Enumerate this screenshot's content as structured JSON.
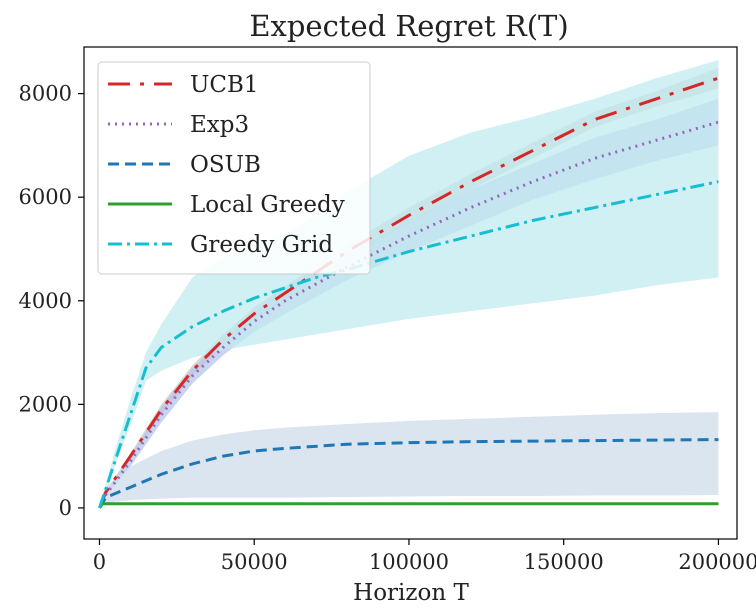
{
  "chart_data": {
    "type": "line",
    "title": "Expected Regret R(T)",
    "xlabel": "Horizon T",
    "ylabel": "",
    "xlim": [
      -5000,
      206000
    ],
    "ylim": [
      -600,
      8900
    ],
    "xticks": [
      0,
      50000,
      100000,
      150000,
      200000
    ],
    "yticks": [
      0,
      2000,
      4000,
      6000,
      8000
    ],
    "grid": false,
    "legend_position": "top-left",
    "series": [
      {
        "name": "UCB1",
        "color": "#d62728",
        "dash": "22 10 4 10",
        "x": [
          0,
          2000,
          10000,
          20000,
          30000,
          40000,
          50000,
          60000,
          80000,
          100000,
          120000,
          140000,
          160000,
          180000,
          200000
        ],
        "y": [
          0,
          300,
          1000,
          1900,
          2650,
          3250,
          3750,
          4150,
          4950,
          5650,
          6300,
          6900,
          7500,
          7900,
          8300
        ],
        "band": {
          "color": "#c9c9c9",
          "lower": [
            0,
            280,
            950,
            1800,
            2550,
            3150,
            3620,
            4020,
            4820,
            5500,
            6150,
            6750,
            7350,
            7750,
            8100
          ],
          "upper": [
            0,
            320,
            1050,
            2000,
            2750,
            3350,
            3880,
            4280,
            5080,
            5800,
            6450,
            7050,
            7650,
            8050,
            8500
          ]
        }
      },
      {
        "name": "Exp3",
        "color": "#9467bd",
        "dash": "2 5",
        "x": [
          0,
          2000,
          10000,
          20000,
          30000,
          40000,
          50000,
          60000,
          80000,
          100000,
          120000,
          140000,
          160000,
          180000,
          200000
        ],
        "y": [
          0,
          250,
          900,
          1800,
          2550,
          3100,
          3600,
          4000,
          4650,
          5250,
          5800,
          6300,
          6750,
          7100,
          7450
        ],
        "band": {
          "color": "#b7c5e8",
          "lower": [
            0,
            220,
            800,
            1650,
            2400,
            2950,
            3400,
            3750,
            4400,
            4950,
            5450,
            5950,
            6350,
            6700,
            7000
          ],
          "upper": [
            0,
            280,
            1000,
            1950,
            2700,
            3250,
            3800,
            4250,
            4900,
            5550,
            6150,
            6650,
            7150,
            7500,
            7900
          ]
        }
      },
      {
        "name": "OSUB",
        "color": "#1f77b4",
        "dash": "11 6",
        "x": [
          0,
          2000,
          10000,
          20000,
          30000,
          40000,
          50000,
          60000,
          80000,
          100000,
          120000,
          140000,
          160000,
          180000,
          200000
        ],
        "y": [
          0,
          200,
          400,
          650,
          850,
          1000,
          1100,
          1150,
          1230,
          1260,
          1280,
          1290,
          1300,
          1310,
          1320
        ],
        "band": {
          "color": "#cddceb",
          "lower": [
            0,
            100,
            150,
            180,
            200,
            200,
            200,
            200,
            210,
            220,
            230,
            230,
            240,
            240,
            250
          ],
          "upper": [
            0,
            400,
            800,
            1100,
            1300,
            1420,
            1500,
            1550,
            1620,
            1680,
            1720,
            1760,
            1800,
            1830,
            1850
          ]
        }
      },
      {
        "name": "Local Greedy",
        "color": "#2ca02c",
        "dash": "",
        "x": [
          0,
          1000,
          200000
        ],
        "y": [
          0,
          80,
          80
        ],
        "band": null
      },
      {
        "name": "Greedy Grid",
        "color": "#17becf",
        "dash": "14 5 3 5",
        "x": [
          0,
          5000,
          10000,
          15000,
          20000,
          30000,
          40000,
          50000,
          60000,
          70000,
          80000,
          100000,
          120000,
          140000,
          160000,
          180000,
          200000
        ],
        "y": [
          0,
          900,
          1800,
          2700,
          3100,
          3500,
          3800,
          4050,
          4250,
          4450,
          4600,
          4950,
          5250,
          5550,
          5800,
          6050,
          6300
        ],
        "band": {
          "color": "#c2ebf0",
          "lower": [
            0,
            800,
            1600,
            2450,
            2650,
            2900,
            3050,
            3150,
            3250,
            3350,
            3450,
            3650,
            3800,
            3950,
            4100,
            4300,
            4450
          ],
          "upper": [
            0,
            1100,
            2100,
            3000,
            3550,
            4450,
            4850,
            5100,
            5300,
            5650,
            6100,
            6800,
            7250,
            7550,
            7900,
            8300,
            8650
          ]
        }
      }
    ]
  }
}
